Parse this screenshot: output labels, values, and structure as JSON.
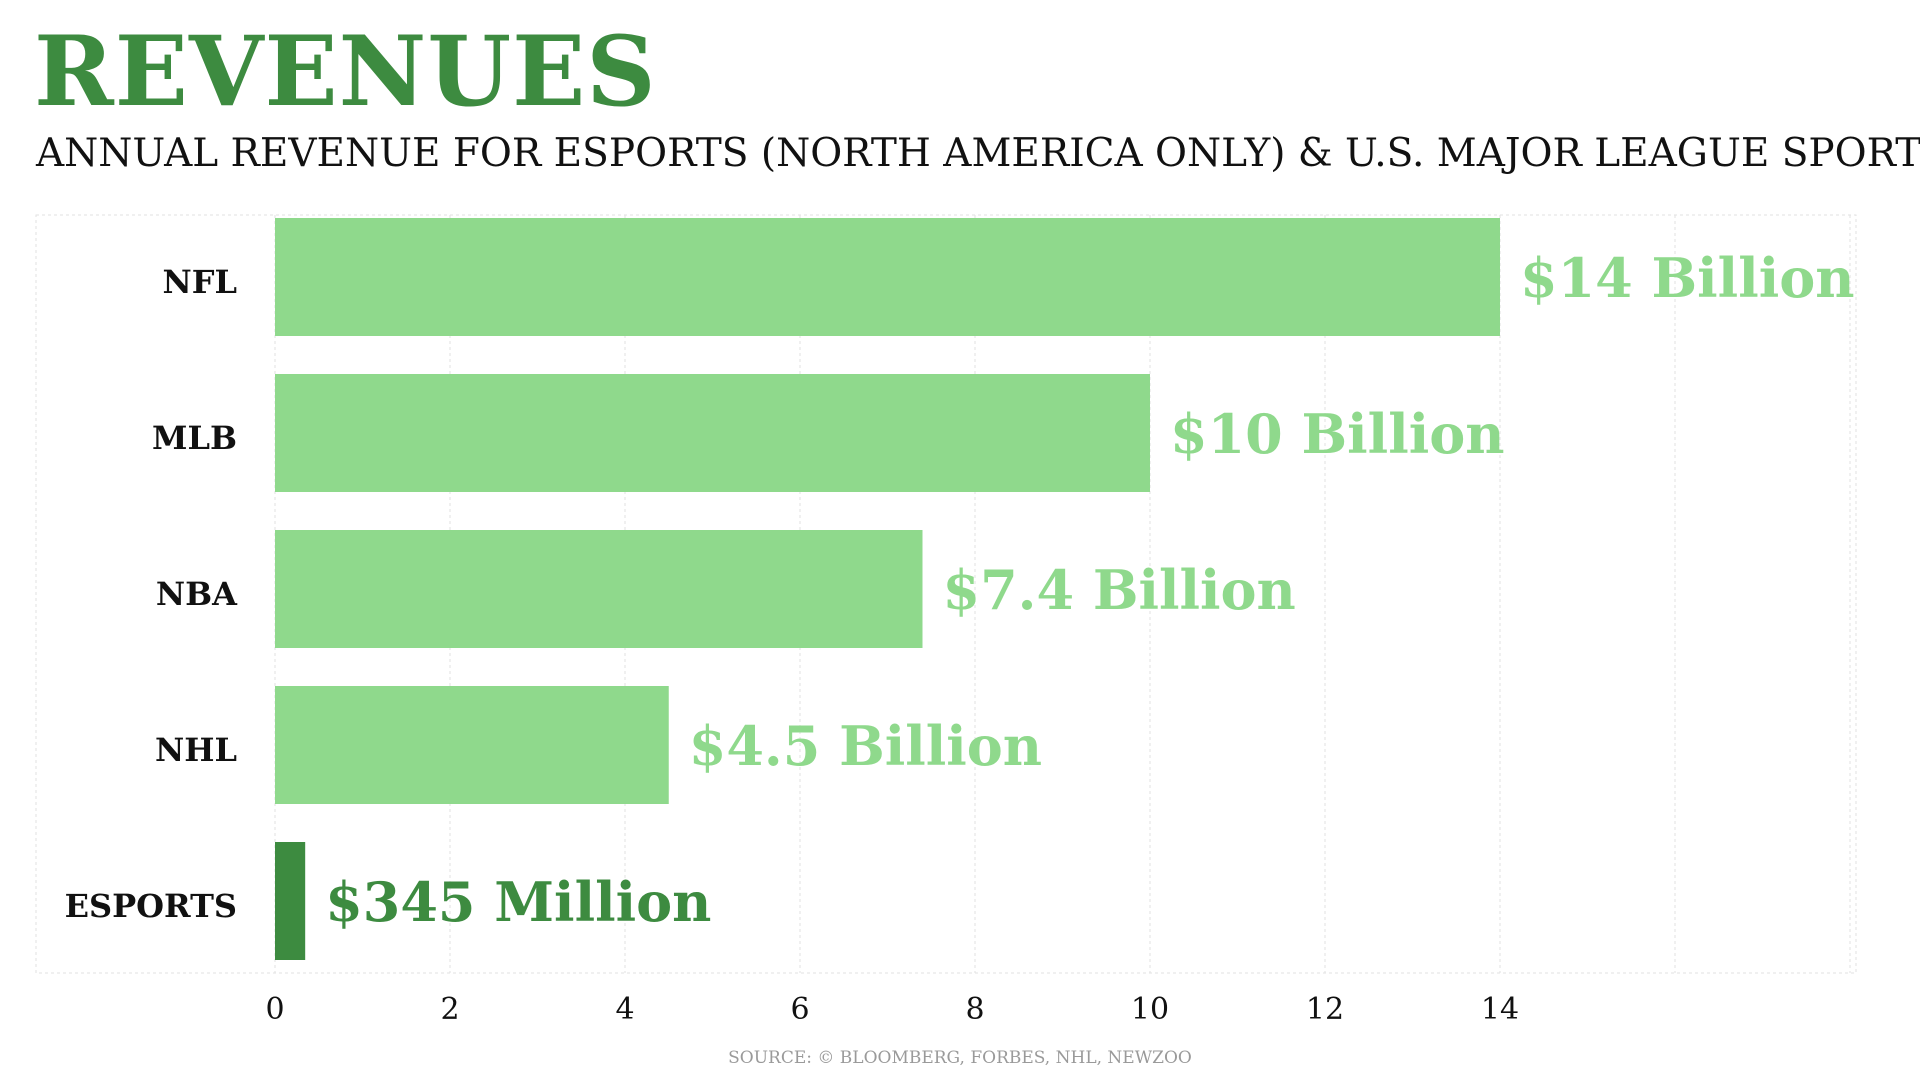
{
  "chart_data": {
    "type": "bar",
    "orientation": "horizontal",
    "title": "REVENUES",
    "subtitle": "ANNUAL REVENUE FOR ESPORTS (NORTH AMERICA ONLY) & U.S. MAJOR LEAGUE SPORTS",
    "categories": [
      "NFL",
      "MLB",
      "NBA",
      "NHL",
      "ESPORTS"
    ],
    "values": [
      14,
      10,
      7.4,
      4.5,
      0.345
    ],
    "value_labels": [
      "$14 Billion",
      "$10 Billion",
      "$7.4 Billion",
      "$4.5 Billion",
      "$345 Million"
    ],
    "xlabel": "",
    "ylabel": "",
    "xlim": [
      0,
      18
    ],
    "xticks": [
      "0",
      "2",
      "4",
      "6",
      "8",
      "10",
      "12",
      "14"
    ],
    "grid": true,
    "legend": "none",
    "colors": {
      "default_bar": "#8fd98c",
      "highlight_bar": "#3d8b40",
      "title": "#3d8b40",
      "highlight_category": "ESPORTS"
    },
    "source": "SOURCE: © BLOOMBERG, FORBES, NHL, NEWZOO"
  }
}
